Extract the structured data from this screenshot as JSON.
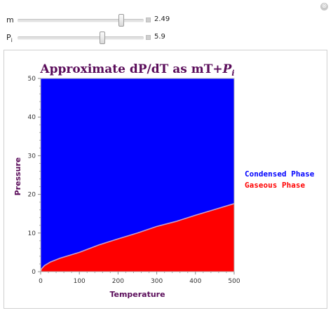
{
  "controls": {
    "close_glyph": "⊗",
    "m": {
      "label": "m",
      "value": "2.49",
      "fraction": 0.835
    },
    "pi": {
      "label": "P",
      "label_sub": "i",
      "value": "5.9",
      "fraction": 0.68
    }
  },
  "chart_data": {
    "type": "area",
    "title_text": "Approximate dP/dT as mT+",
    "title_var": "P",
    "title_sub": "i",
    "xlabel": "Temperature",
    "ylabel": "Pressure",
    "xlim": [
      0,
      500
    ],
    "ylim": [
      0,
      50
    ],
    "xticks": [
      0,
      100,
      200,
      300,
      400,
      500
    ],
    "yticks": [
      0,
      10,
      20,
      30,
      40,
      50
    ],
    "boundary": {
      "x": [
        0,
        2,
        10,
        25,
        50,
        100,
        150,
        200,
        250,
        300,
        350,
        400,
        450,
        500
      ],
      "y": [
        0,
        0.7,
        1.6,
        2.5,
        3.5,
        5.0,
        6.9,
        8.5,
        10.0,
        11.7,
        13.0,
        14.6,
        16.1,
        17.6
      ]
    },
    "series": [
      {
        "name": "Condensed Phase",
        "color": "#0000ff",
        "region": "above"
      },
      {
        "name": "Gaseous Phase",
        "color": "#ff0000",
        "region": "below"
      }
    ],
    "title_color": "#5a0c5a",
    "axis_label_color": "#5a0c5a",
    "boundary_color": "#c9a0c9"
  }
}
